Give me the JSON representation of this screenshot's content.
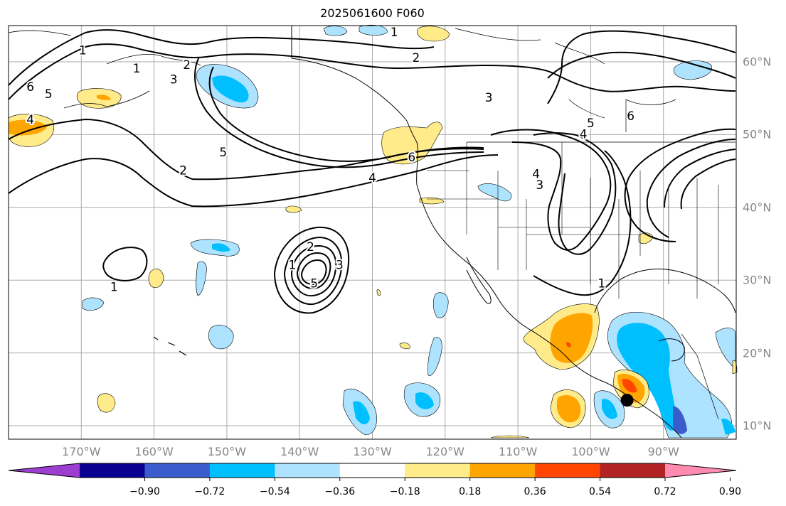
{
  "title": "2025061600 F060",
  "map": {
    "projection": "plate-carree",
    "extent": {
      "lon_min": -180,
      "lon_max": -80,
      "lat_min": 8,
      "lat_max": 65
    },
    "contour_color": "#000000",
    "coastline_color": "#000000",
    "gridline_color": "#aaaaaa",
    "label_color": "#888888"
  },
  "lon_labels": [
    "170°W",
    "160°W",
    "150°W",
    "140°W",
    "130°W",
    "120°W",
    "110°W",
    "100°W",
    "90°W"
  ],
  "lat_labels": [
    "60°N",
    "50°N",
    "40°N",
    "30°N",
    "20°N",
    "10°N"
  ],
  "contour_labels": [
    {
      "text": "1",
      "lon": -169.8,
      "lat": 61.5
    },
    {
      "text": "1",
      "lon": -162.4,
      "lat": 59.0
    },
    {
      "text": "2",
      "lon": -155.5,
      "lat": 59.5
    },
    {
      "text": "3",
      "lon": -157.3,
      "lat": 57.5
    },
    {
      "text": "5",
      "lon": -174.5,
      "lat": 55.5
    },
    {
      "text": "6",
      "lon": -177.0,
      "lat": 56.5
    },
    {
      "text": "4",
      "lon": -177.0,
      "lat": 52.0
    },
    {
      "text": "5",
      "lon": -150.5,
      "lat": 47.5
    },
    {
      "text": "2",
      "lon": -156.0,
      "lat": 45.0
    },
    {
      "text": "4",
      "lon": -130.0,
      "lat": 44.0
    },
    {
      "text": "6",
      "lon": -124.6,
      "lat": 46.8
    },
    {
      "text": "1",
      "lon": -127.0,
      "lat": 64.0
    },
    {
      "text": "2",
      "lon": -124.0,
      "lat": 60.5
    },
    {
      "text": "3",
      "lon": -114.0,
      "lat": 55.0
    },
    {
      "text": "5",
      "lon": -100.0,
      "lat": 51.5
    },
    {
      "text": "6",
      "lon": -94.5,
      "lat": 52.5
    },
    {
      "text": "4",
      "lon": -101.0,
      "lat": 50.0
    },
    {
      "text": "4",
      "lon": -107.5,
      "lat": 44.5
    },
    {
      "text": "3",
      "lon": -107.0,
      "lat": 43.0
    },
    {
      "text": "1",
      "lon": -165.5,
      "lat": 29.0
    },
    {
      "text": "1",
      "lon": -141.0,
      "lat": 32.0
    },
    {
      "text": "2",
      "lon": -138.5,
      "lat": 34.5
    },
    {
      "text": "5",
      "lon": -138.0,
      "lat": 29.5
    },
    {
      "text": "3",
      "lon": -134.5,
      "lat": 32.0
    },
    {
      "text": "1",
      "lon": -98.5,
      "lat": 29.5
    }
  ],
  "colorbar": {
    "colors": [
      "#9c3fd1",
      "#0a008f",
      "#3a5ccc",
      "#00bfff",
      "#aee3ff",
      "#ffffff",
      "#ffeb8a",
      "#ffa500",
      "#ff4500",
      "#b22222",
      "#ff8cb0"
    ],
    "tick_labels": [
      "−0.90",
      "−0.72",
      "−0.54",
      "−0.36",
      "−0.18",
      "0.18",
      "0.36",
      "0.54",
      "0.72",
      "0.90"
    ]
  },
  "marker": {
    "lon": -95.0,
    "lat": 13.5,
    "color": "#000000"
  }
}
